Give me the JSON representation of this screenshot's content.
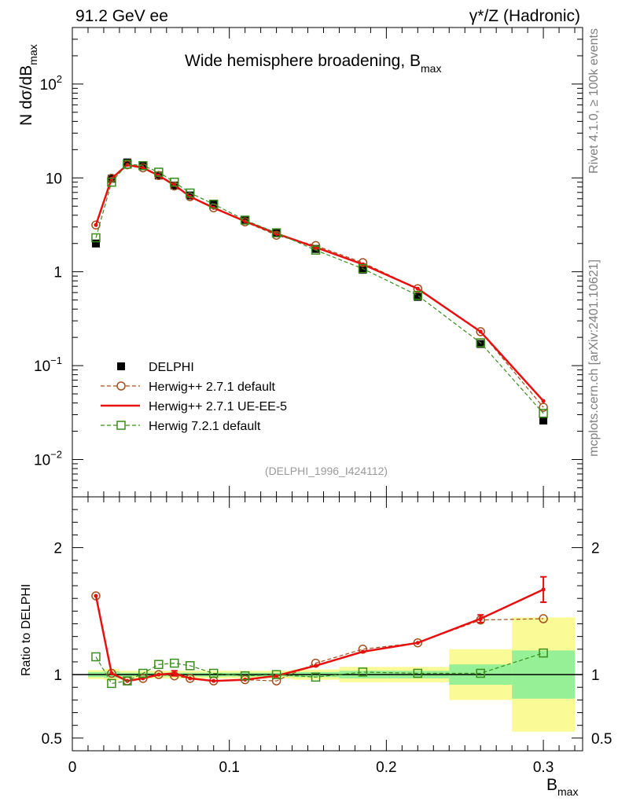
{
  "header": {
    "left": "91.2 GeV ee",
    "right_sym": "γ*/Z (Hadronic)"
  },
  "title_main": "Wide hemisphere broadening, B",
  "title_sub": "max",
  "side_labels": {
    "rivet": "Rivet 4.1.0, ≥ 100k events",
    "mcplots": "mcplots.cern.ch [arXiv:2401.10621]"
  },
  "analysis_id": "(DELPHI_1996_I424112)",
  "ylabel_main": {
    "prefix": "N  dσ/dB",
    "sub": "max"
  },
  "ylabel_ratio": "Ratio to DELPHI",
  "xlabel": {
    "main": "B",
    "sub": "max"
  },
  "main_ticks": {
    "y": [
      {
        "value": 0.01,
        "base": "10",
        "exp": "−2"
      },
      {
        "value": 0.1,
        "base": "10",
        "exp": "−1"
      },
      {
        "value": 1,
        "base": "1",
        "exp": ""
      },
      {
        "value": 10,
        "base": "10",
        "exp": ""
      },
      {
        "value": 100,
        "base": "10",
        "exp": "2"
      }
    ]
  },
  "ratio_ticks": {
    "y": [
      "0.5",
      "1",
      "2"
    ],
    "y_values": [
      0.5,
      1,
      2
    ]
  },
  "x_ticks": {
    "labels": [
      "0",
      "0.1",
      "0.2",
      "0.3"
    ],
    "values": [
      0,
      0.1,
      0.2,
      0.3
    ]
  },
  "legend": [
    {
      "label": "DELPHI",
      "key": "data"
    },
    {
      "label": "Herwig++ 2.7.1 default",
      "key": "hpp_default"
    },
    {
      "label": "Herwig++ 2.7.1 UE-EE-5",
      "key": "hpp_ueee5"
    },
    {
      "label": "Herwig 7.2.1 default",
      "key": "h7_default"
    }
  ],
  "colors": {
    "data": "#000000",
    "hpp_default": "#a0501e",
    "hpp_ueee5": "#e8100f",
    "h7_default": "#3a8c1e",
    "band_yellow": "#fafa96",
    "band_green": "#96f096"
  },
  "chart_data": {
    "type": "line",
    "title": "Wide hemisphere broadening, B_max",
    "xlabel": "B_max",
    "ylabel": "N dσ/dB_max",
    "ylabel_ratio": "Ratio to DELPHI",
    "xlim": [
      0,
      0.325
    ],
    "ylim": [
      0.004,
      400
    ],
    "ratio_ylim": [
      0.4,
      2.4
    ],
    "yscale": "log",
    "x": [
      0.015,
      0.025,
      0.035,
      0.045,
      0.055,
      0.065,
      0.075,
      0.09,
      0.11,
      0.13,
      0.155,
      0.185,
      0.22,
      0.26,
      0.3
    ],
    "x_bins": [
      [
        0.01,
        0.02
      ],
      [
        0.02,
        0.03
      ],
      [
        0.03,
        0.04
      ],
      [
        0.04,
        0.05
      ],
      [
        0.05,
        0.06
      ],
      [
        0.06,
        0.07
      ],
      [
        0.07,
        0.08
      ],
      [
        0.08,
        0.1
      ],
      [
        0.1,
        0.12
      ],
      [
        0.12,
        0.14
      ],
      [
        0.14,
        0.17
      ],
      [
        0.17,
        0.2
      ],
      [
        0.2,
        0.24
      ],
      [
        0.24,
        0.28
      ],
      [
        0.28,
        0.32
      ]
    ],
    "series": [
      {
        "name": "DELPHI",
        "key": "data",
        "values": [
          2.0,
          9.8,
          14.6,
          13.3,
          10.6,
          8.3,
          6.5,
          5.2,
          3.55,
          2.6,
          1.75,
          1.05,
          0.54,
          0.17,
          0.026
        ]
      },
      {
        "name": "Herwig++ 2.7.1 default",
        "key": "hpp_default",
        "values": [
          3.15,
          9.9,
          13.8,
          12.8,
          10.6,
          8.2,
          6.3,
          4.8,
          3.4,
          2.45,
          1.9,
          1.25,
          0.66,
          0.23,
          0.036
        ]
      },
      {
        "name": "Herwig++ 2.7.1 UE-EE-5",
        "key": "hpp_ueee5",
        "values": [
          3.15,
          9.85,
          13.8,
          12.8,
          10.6,
          8.4,
          6.3,
          4.8,
          3.45,
          2.55,
          1.82,
          1.2,
          0.66,
          0.23,
          0.042
        ]
      },
      {
        "name": "Herwig 7.2.1 default",
        "key": "h7_default",
        "values": [
          2.3,
          9.0,
          14.0,
          13.5,
          11.5,
          9.0,
          6.9,
          5.25,
          3.55,
          2.6,
          1.7,
          1.08,
          0.56,
          0.175,
          0.031
        ]
      }
    ],
    "ratio_series": [
      {
        "name": "Herwig++ 2.7.1 default",
        "key": "hpp_default",
        "values": [
          1.62,
          1.01,
          0.95,
          0.97,
          1.0,
          0.99,
          0.97,
          0.95,
          0.96,
          0.95,
          1.09,
          1.2,
          1.25,
          1.43,
          1.44
        ]
      },
      {
        "name": "Herwig++ 2.7.1 UE-EE-5",
        "key": "hpp_ueee5",
        "values": [
          1.62,
          1.01,
          0.95,
          0.97,
          1.0,
          1.01,
          0.97,
          0.95,
          0.96,
          0.99,
          1.07,
          1.18,
          1.25,
          1.44,
          1.67
        ],
        "errors": [
          0,
          0,
          0,
          0,
          0,
          0.02,
          0,
          0,
          0,
          0,
          0,
          0,
          0,
          0.03,
          0.1
        ]
      },
      {
        "name": "Herwig 7.2.1 default",
        "key": "h7_default",
        "values": [
          1.14,
          0.93,
          0.95,
          1.01,
          1.08,
          1.09,
          1.07,
          1.01,
          0.99,
          1.0,
          0.98,
          1.02,
          1.01,
          1.01,
          1.17
        ]
      }
    ],
    "data_uncertainty_bands": {
      "green_half_width": [
        0.02,
        0.025,
        0.015,
        0.015,
        0.015,
        0.015,
        0.015,
        0.015,
        0.015,
        0.015,
        0.02,
        0.03,
        0.03,
        0.08,
        0.19
      ],
      "yellow_half_width": [
        0.035,
        0.045,
        0.03,
        0.03,
        0.03,
        0.03,
        0.03,
        0.03,
        0.03,
        0.03,
        0.04,
        0.06,
        0.06,
        0.2,
        0.45
      ]
    }
  }
}
